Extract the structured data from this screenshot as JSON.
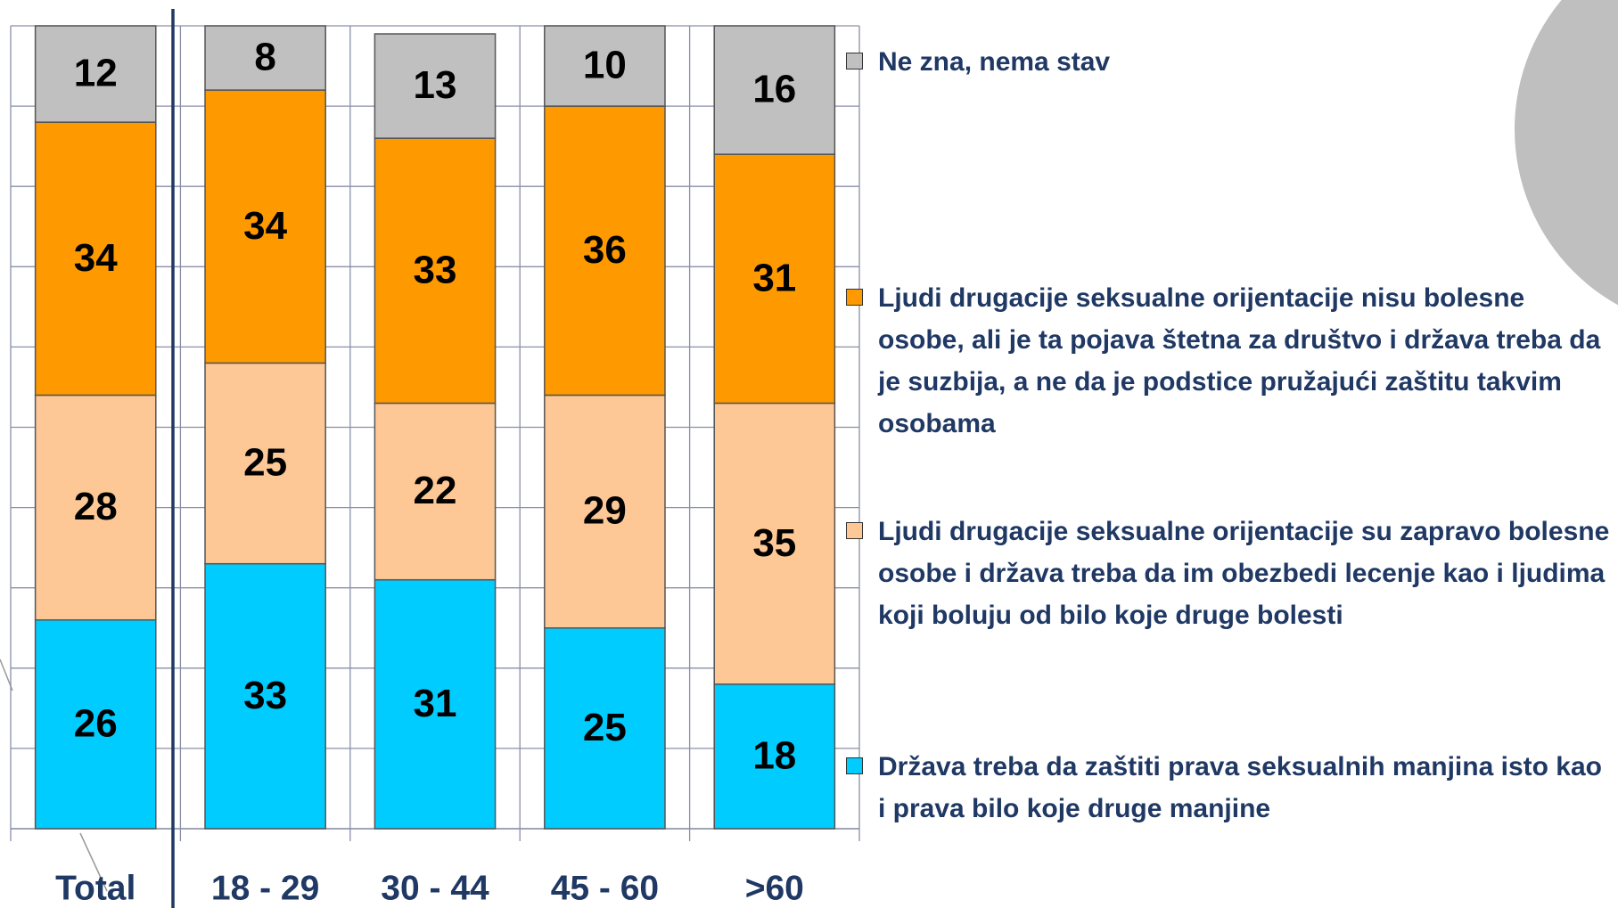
{
  "chart_data": {
    "type": "stacked_bar",
    "categories": [
      "Total",
      "18 - 29",
      "30 - 44",
      "45 - 60",
      ">60"
    ],
    "series": [
      {
        "name": "Država treba da zaštiti prava seksualnih manjina isto kao i prava bilo koje druge manjine",
        "color": "#00ccff",
        "values": [
          26,
          33,
          31,
          25,
          18
        ]
      },
      {
        "name": "Ljudi drugacije seksualne orijentacije su zapravo bolesne osobe i država treba da im obezbedi lecenje kao i ljudima koji boluju od bilo koje druge bolesti",
        "color": "#fdc896",
        "values": [
          28,
          25,
          22,
          29,
          35
        ]
      },
      {
        "name": "Ljudi drugacije seksualne orijentacije nisu bolesne osobe, ali je ta pojava štetna za društvo i država treba da je suzbija, a ne da je podstice pružajući zaštitu takvim osobama",
        "color": "#ff9900",
        "values": [
          34,
          34,
          33,
          36,
          31
        ]
      },
      {
        "name": "Ne zna, nema stav",
        "color": "#c0c0c0",
        "values": [
          12,
          8,
          13,
          10,
          16
        ]
      }
    ],
    "ylim": [
      0,
      100
    ],
    "yticks": [
      0,
      10,
      20,
      30,
      40,
      50,
      60,
      70,
      80,
      90,
      100
    ],
    "grid": true
  }
}
